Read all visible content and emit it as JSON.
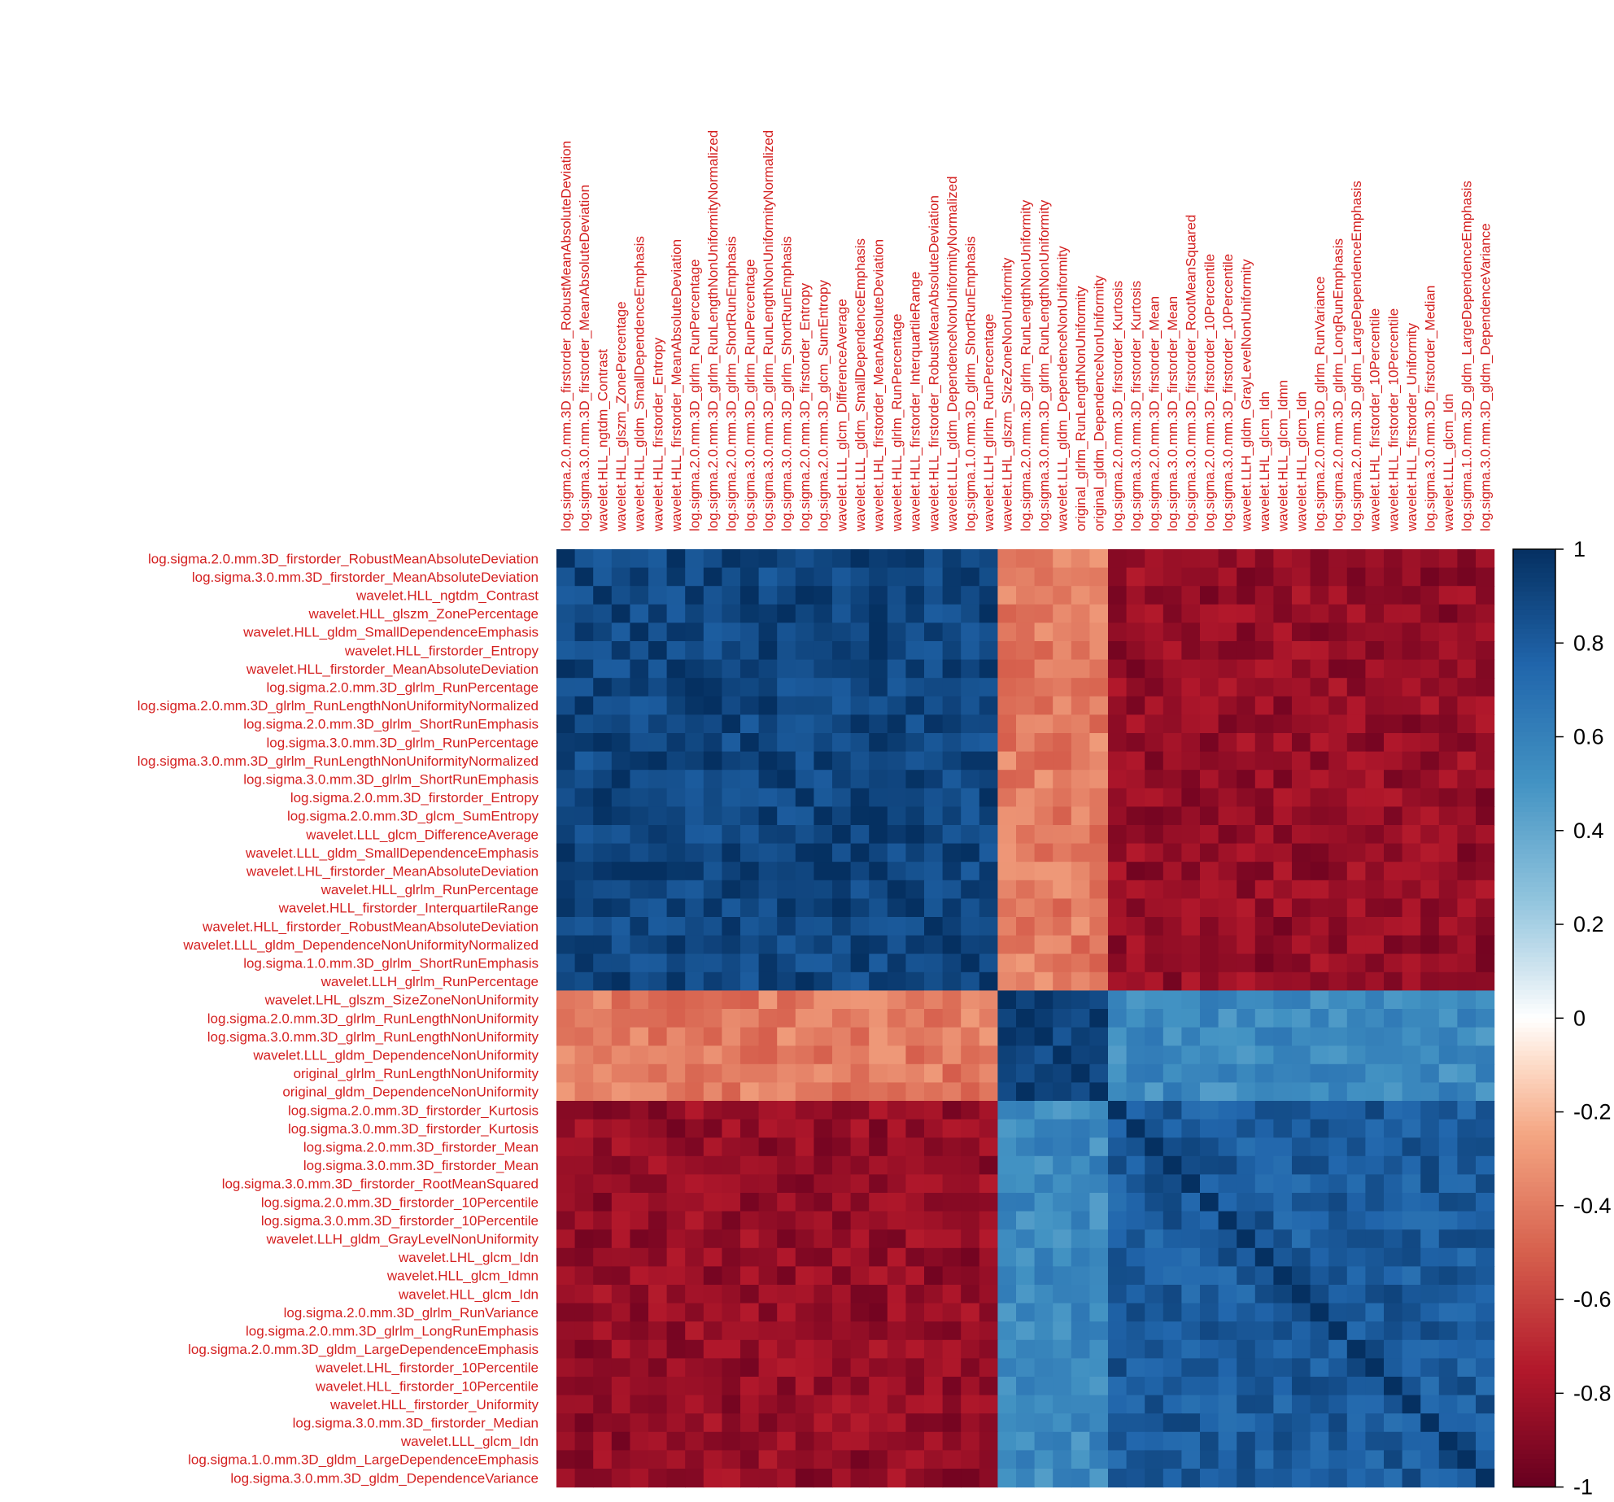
{
  "chart_data": {
    "type": "heatmap",
    "labels": [
      "log.sigma.2.0.mm.3D_firstorder_RobustMeanAbsoluteDeviation",
      "log.sigma.3.0.mm.3D_firstorder_MeanAbsoluteDeviation",
      "wavelet.HLL_ngtdm_Contrast",
      "wavelet.HLL_glszm_ZonePercentage",
      "wavelet.HLL_gldm_SmallDependenceEmphasis",
      "wavelet.HLL_firstorder_Entropy",
      "wavelet.HLL_firstorder_MeanAbsoluteDeviation",
      "log.sigma.2.0.mm.3D_glrlm_RunPercentage",
      "log.sigma.2.0.mm.3D_glrlm_RunLengthNonUniformityNormalized",
      "log.sigma.2.0.mm.3D_glrlm_ShortRunEmphasis",
      "log.sigma.3.0.mm.3D_glrlm_RunPercentage",
      "log.sigma.3.0.mm.3D_glrlm_RunLengthNonUniformityNormalized",
      "log.sigma.3.0.mm.3D_glrlm_ShortRunEmphasis",
      "log.sigma.2.0.mm.3D_firstorder_Entropy",
      "log.sigma.2.0.mm.3D_glcm_SumEntropy",
      "wavelet.LLL_glcm_DifferenceAverage",
      "wavelet.LLL_gldm_SmallDependenceEmphasis",
      "wavelet.LHL_firstorder_MeanAbsoluteDeviation",
      "wavelet.HLL_glrlm_RunPercentage",
      "wavelet.HLL_firstorder_InterquartileRange",
      "wavelet.HLL_firstorder_RobustMeanAbsoluteDeviation",
      "wavelet.LLL_gldm_DependenceNonUniformityNormalized",
      "log.sigma.1.0.mm.3D_glrlm_ShortRunEmphasis",
      "wavelet.LLH_glrlm_RunPercentage",
      "wavelet.LHL_glszm_SizeZoneNonUniformity",
      "log.sigma.2.0.mm.3D_glrlm_RunLengthNonUniformity",
      "log.sigma.3.0.mm.3D_glrlm_RunLengthNonUniformity",
      "wavelet.LLL_gldm_DependenceNonUniformity",
      "original_glrlm_RunLengthNonUniformity",
      "original_gldm_DependenceNonUniformity",
      "log.sigma.2.0.mm.3D_firstorder_Kurtosis",
      "log.sigma.3.0.mm.3D_firstorder_Kurtosis",
      "log.sigma.2.0.mm.3D_firstorder_Mean",
      "log.sigma.3.0.mm.3D_firstorder_Mean",
      "log.sigma.3.0.mm.3D_firstorder_RootMeanSquared",
      "log.sigma.2.0.mm.3D_firstorder_10Percentile",
      "log.sigma.3.0.mm.3D_firstorder_10Percentile",
      "wavelet.LLH_gldm_GrayLevelNonUniformity",
      "wavelet.LHL_glcm_Idn",
      "wavelet.HLL_glcm_Idmn",
      "wavelet.HLL_glcm_Idn",
      "log.sigma.2.0.mm.3D_glrlm_RunVariance",
      "log.sigma.2.0.mm.3D_glrlm_LongRunEmphasis",
      "log.sigma.2.0.mm.3D_gldm_LargeDependenceEmphasis",
      "wavelet.LHL_firstorder_10Percentile",
      "wavelet.HLL_firstorder_10Percentile",
      "wavelet.HLL_firstorder_Uniformity",
      "log.sigma.3.0.mm.3D_firstorder_Median",
      "wavelet.LLL_glcm_Idn",
      "log.sigma.1.0.mm.3D_gldm_LargeDependenceEmphasis",
      "log.sigma.3.0.mm.3D_gldm_DependenceVariance"
    ],
    "cluster_sizes": [
      24,
      6,
      21
    ],
    "blocks": [
      [
        0.9,
        -0.4,
        -0.85
      ],
      [
        -0.4,
        0.9,
        0.55
      ],
      [
        -0.85,
        0.55,
        0.8
      ]
    ],
    "color_scale": {
      "ticks": [
        "1",
        "0.8",
        "0.6",
        "0.4",
        "0.2",
        "0",
        "-0.2",
        "-0.4",
        "-0.6",
        "-0.8",
        "-1"
      ],
      "stops": [
        {
          "v": -1.0,
          "c": "#67001f"
        },
        {
          "v": -0.75,
          "c": "#b2182b"
        },
        {
          "v": -0.5,
          "c": "#d6604d"
        },
        {
          "v": -0.25,
          "c": "#f4a582"
        },
        {
          "v": -0.1,
          "c": "#fddbc7"
        },
        {
          "v": 0.0,
          "c": "#ffffff"
        },
        {
          "v": 0.1,
          "c": "#d1e5f0"
        },
        {
          "v": 0.25,
          "c": "#92c5de"
        },
        {
          "v": 0.5,
          "c": "#4393c3"
        },
        {
          "v": 0.75,
          "c": "#2166ac"
        },
        {
          "v": 1.0,
          "c": "#053061"
        }
      ]
    },
    "label_color": "#d42020"
  }
}
